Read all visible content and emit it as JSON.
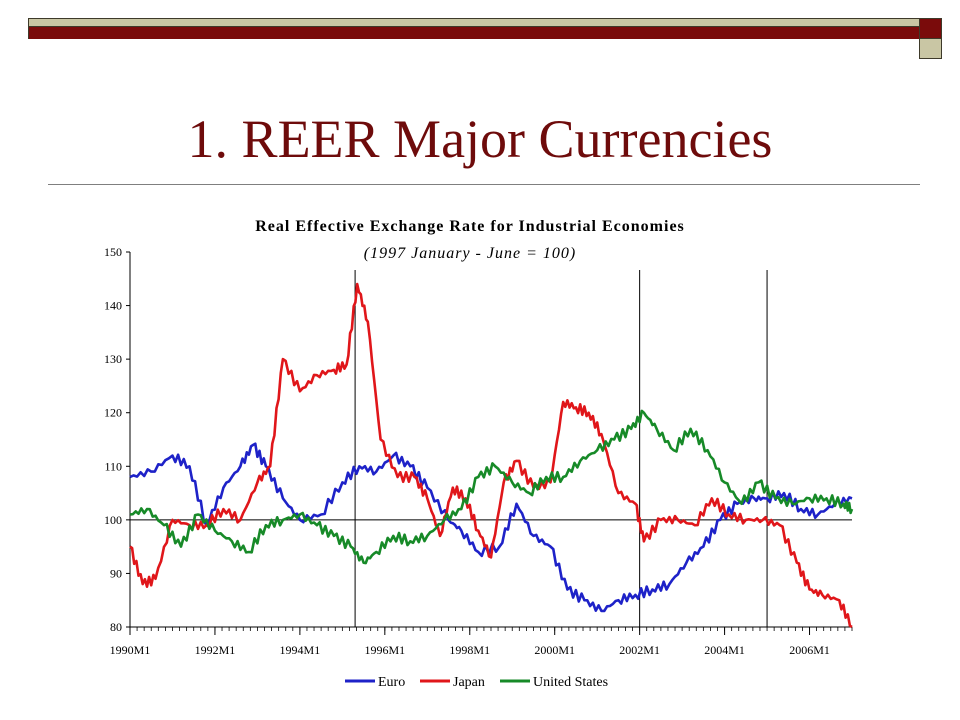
{
  "slide": {
    "title": "1. REER Major Currencies"
  },
  "colors": {
    "accent_dark_red": "#7a0b0b",
    "accent_tan": "#c9c6a4",
    "euro": "#1e22c8",
    "japan": "#e0161a",
    "united_states": "#178a28"
  },
  "chart_data": {
    "type": "line",
    "title": "Real Effective Exchange Rate for Industrial Economies",
    "subtitle": "(1997 January - June = 100)",
    "xlabel": "",
    "ylabel": "",
    "ylim": [
      80,
      150
    ],
    "xlim": [
      1990.0,
      2007.0
    ],
    "y_ticks": [
      "80",
      "90",
      "100",
      "110",
      "120",
      "130",
      "140",
      "150"
    ],
    "x_tick_labels": [
      "1990M1",
      "1992M1",
      "1994M1",
      "1996M1",
      "1998M1",
      "2000M1",
      "2002M1",
      "2004M1",
      "2006M1"
    ],
    "reference_line_y": 100,
    "vertical_markers_x": [
      1995.3,
      2002.0,
      2005.0
    ],
    "grid": false,
    "legend_position": "bottom-center",
    "series": [
      {
        "name": "Euro",
        "color_key": "euro",
        "x": [
          1990.0,
          1990.5,
          1991.0,
          1991.4,
          1991.8,
          1992.2,
          1992.6,
          1992.9,
          1993.2,
          1993.6,
          1994.0,
          1994.5,
          1995.0,
          1995.4,
          1995.8,
          1996.2,
          1996.6,
          1997.0,
          1997.5,
          1997.8,
          1998.2,
          1998.7,
          1999.1,
          1999.5,
          1999.9,
          2000.3,
          2000.7,
          2001.1,
          2001.5,
          2001.9,
          2002.3,
          2002.7,
          2003.1,
          2003.5,
          2003.9,
          2004.3,
          2004.7,
          2005.0,
          2005.4,
          2005.8,
          2006.2,
          2006.6,
          2007.0
        ],
        "values": [
          108,
          109,
          112,
          110,
          99,
          106,
          110,
          114,
          110,
          104,
          100,
          101,
          107,
          110,
          109,
          112,
          110,
          106,
          100,
          98,
          94,
          95,
          103,
          97,
          95,
          87,
          85,
          83,
          85,
          86,
          87,
          88,
          92,
          95,
          100,
          103,
          104,
          104,
          105,
          102,
          101,
          103,
          104
        ]
      },
      {
        "name": "Japan",
        "color_key": "japan",
        "x": [
          1990.0,
          1990.3,
          1990.6,
          1991.0,
          1991.4,
          1991.8,
          1992.2,
          1992.6,
          1993.0,
          1993.3,
          1993.6,
          1994.0,
          1994.4,
          1994.8,
          1995.1,
          1995.35,
          1995.6,
          1995.9,
          1996.3,
          1996.7,
          1997.0,
          1997.3,
          1997.6,
          1997.9,
          1998.2,
          1998.5,
          1998.8,
          1999.1,
          1999.5,
          1999.9,
          2000.2,
          2000.5,
          2000.8,
          2001.1,
          2001.5,
          2001.9,
          2002.1,
          2002.5,
          2002.9,
          2003.3,
          2003.7,
          2004.1,
          2004.5,
          2004.9,
          2005.3,
          2005.7,
          2006.0,
          2006.3,
          2006.7,
          2007.0
        ],
        "values": [
          95,
          88,
          89,
          100,
          99,
          99,
          102,
          100,
          107,
          110,
          130,
          124,
          127,
          128,
          129,
          144,
          137,
          115,
          108,
          108,
          104,
          97,
          106,
          104,
          98,
          93,
          107,
          111,
          106,
          107,
          122,
          121,
          120,
          116,
          105,
          103,
          96,
          100,
          100,
          99,
          104,
          101,
          100,
          100,
          99,
          92,
          87,
          86,
          85,
          80
        ]
      },
      {
        "name": "United States",
        "color_key": "united_states",
        "x": [
          1990.0,
          1990.4,
          1990.8,
          1991.2,
          1991.6,
          1992.0,
          1992.4,
          1992.8,
          1993.2,
          1993.6,
          1994.0,
          1994.4,
          1994.8,
          1995.2,
          1995.5,
          1995.8,
          1996.2,
          1996.6,
          1997.0,
          1997.4,
          1997.8,
          1998.2,
          1998.6,
          1999.0,
          1999.4,
          1999.8,
          2000.2,
          2000.6,
          2001.0,
          2001.4,
          2001.8,
          2002.1,
          2002.4,
          2002.8,
          2003.2,
          2003.6,
          2004.0,
          2004.4,
          2004.8,
          2005.2,
          2005.6,
          2006.0,
          2006.4,
          2006.8,
          2007.0
        ],
        "values": [
          101,
          102,
          99,
          95,
          101,
          98,
          96,
          94,
          99,
          100,
          101,
          99,
          97,
          95,
          92,
          94,
          97,
          96,
          97,
          100,
          102,
          108,
          110,
          107,
          105,
          108,
          108,
          111,
          113,
          115,
          117,
          120,
          117,
          113,
          117,
          113,
          107,
          103,
          107,
          104,
          103,
          104,
          104,
          103,
          102
        ]
      }
    ]
  }
}
